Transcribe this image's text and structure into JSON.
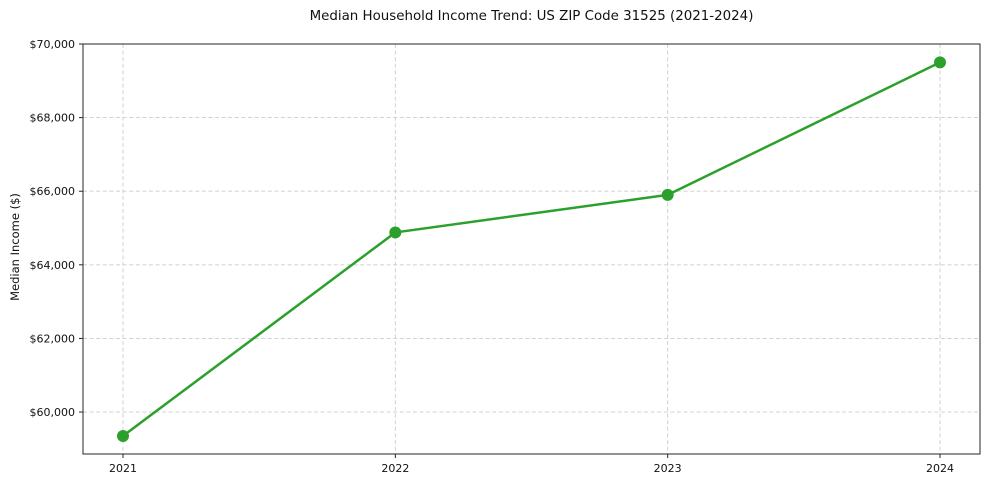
{
  "chart_data": {
    "type": "line",
    "title": "Median Household Income Trend: US ZIP Code 31525 (2021-2024)",
    "xlabel": "",
    "ylabel": "Median Income ($)",
    "categories": [
      "2021",
      "2022",
      "2023",
      "2024"
    ],
    "series": [
      {
        "name": "Median Household Income",
        "values": [
          59350,
          64880,
          65900,
          69500
        ],
        "color": "#2ca02c",
        "marker": "circle"
      }
    ],
    "ylim": [
      58860,
      70000
    ],
    "yticks": [
      60000,
      62000,
      64000,
      66000,
      68000,
      70000
    ],
    "ytick_labels": [
      "$60,000",
      "$62,000",
      "$64,000",
      "$66,000",
      "$68,000",
      "$70,000"
    ],
    "grid": "dashed",
    "grid_color": "#cccccc",
    "legend": "none",
    "background": "#ffffff"
  }
}
